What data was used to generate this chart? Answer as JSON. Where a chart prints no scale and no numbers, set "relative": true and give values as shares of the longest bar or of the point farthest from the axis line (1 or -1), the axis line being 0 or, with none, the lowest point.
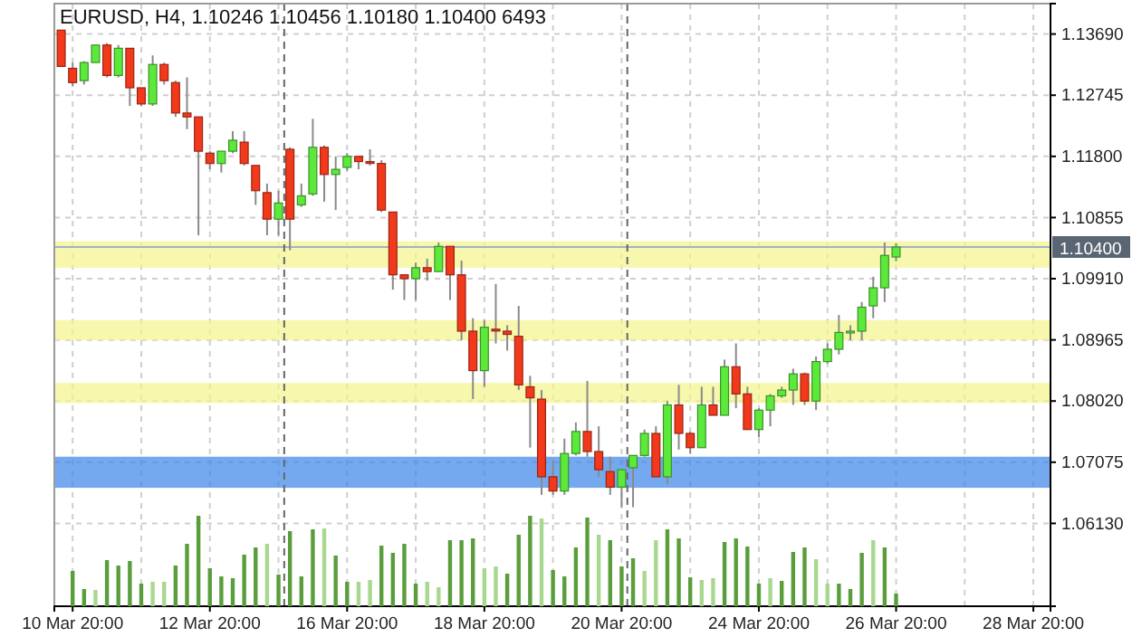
{
  "chart_data": [
    {
      "type": "candlestick",
      "title": "EURUSD, H4, 1.10246 1.10456 1.10180 1.10400 6493",
      "categories": [
        null,
        "10 Mar 20:00",
        null,
        null,
        null,
        null,
        null,
        null,
        null,
        null,
        null,
        null,
        null,
        "12 Mar 20:00",
        null,
        null,
        null,
        null,
        null,
        null,
        null,
        null,
        null,
        null,
        null,
        "16 Mar 20:00",
        null,
        null,
        null,
        null,
        null,
        null,
        null,
        null,
        null,
        null,
        null,
        "18 Mar 20:00",
        null,
        null,
        null,
        null,
        null,
        null,
        null,
        null,
        null,
        null,
        null,
        "20 Mar 20:00",
        null,
        null,
        null,
        null,
        null,
        null,
        null,
        null,
        null,
        null,
        null,
        "24 Mar 20:00",
        null,
        null,
        null,
        null,
        null,
        null,
        null,
        null,
        null,
        null,
        null,
        "26 Mar 20:00",
        null,
        null,
        null,
        null,
        null,
        null,
        null,
        null,
        null,
        null,
        null,
        "28 Mar 20:00"
      ],
      "ohlc": [
        [
          1.1375,
          1.1375,
          1.1319,
          1.1319
        ],
        [
          1.1316,
          1.1325,
          1.1288,
          1.1294
        ],
        [
          1.1297,
          1.1327,
          1.1291,
          1.1325
        ],
        [
          1.1325,
          1.1352,
          1.1325,
          1.1352
        ],
        [
          1.1352,
          1.1355,
          1.1302,
          1.1305
        ],
        [
          1.1305,
          1.1352,
          1.1302,
          1.1347
        ],
        [
          1.1347,
          1.1347,
          1.1258,
          1.1286
        ],
        [
          1.1286,
          1.1286,
          1.1258,
          1.1261
        ],
        [
          1.1261,
          1.1336,
          1.1258,
          1.1322
        ],
        [
          1.1322,
          1.1325,
          1.1291,
          1.1297
        ],
        [
          1.1294,
          1.1297,
          1.1241,
          1.1247
        ],
        [
          1.1247,
          1.1302,
          1.1222,
          1.1241
        ],
        [
          1.1241,
          1.1241,
          1.1058,
          1.1188
        ],
        [
          1.1185,
          1.1188,
          1.116,
          1.1169
        ],
        [
          1.1169,
          1.1188,
          1.1155,
          1.1188
        ],
        [
          1.1188,
          1.1219,
          1.1185,
          1.1205
        ],
        [
          1.1202,
          1.1219,
          1.1166,
          1.1169
        ],
        [
          1.1166,
          1.1166,
          1.1105,
          1.1127
        ],
        [
          1.1124,
          1.1138,
          1.1058,
          1.1083
        ],
        [
          1.1083,
          1.1127,
          1.1058,
          1.1108
        ],
        [
          1.1191,
          1.1194,
          1.1035,
          1.1083
        ],
        [
          1.1105,
          1.1138,
          1.1102,
          1.1119
        ],
        [
          1.1122,
          1.1238,
          1.1119,
          1.1194
        ],
        [
          1.1194,
          1.1197,
          1.111,
          1.1152
        ],
        [
          1.1152,
          1.118,
          1.1097,
          1.116
        ],
        [
          1.1163,
          1.1185,
          1.1158,
          1.118
        ],
        [
          1.118,
          1.118,
          1.116,
          1.1172
        ],
        [
          1.1172,
          1.1191,
          1.1166,
          1.1171
        ],
        [
          1.1169,
          1.1174,
          1.1094,
          1.1097
        ],
        [
          1.1094,
          1.1094,
          1.0974,
          1.0997
        ],
        [
          1.0997,
          1.0997,
          1.0958,
          1.0991
        ],
        [
          1.0991,
          1.1016,
          1.0958,
          1.1008
        ],
        [
          1.1008,
          1.1022,
          1.0988,
          1.1002
        ],
        [
          1.1002,
          1.1047,
          1.1002,
          1.1041
        ],
        [
          1.1041,
          1.1041,
          1.0958,
          1.0997
        ],
        [
          1.0997,
          1.1019,
          1.0896,
          1.091
        ],
        [
          1.091,
          1.093,
          1.0805,
          1.0849
        ],
        [
          1.0849,
          1.0927,
          1.0824,
          1.0916
        ],
        [
          1.0913,
          1.0983,
          1.0891,
          1.0912
        ],
        [
          1.091,
          1.0919,
          1.088,
          1.0905
        ],
        [
          1.0902,
          1.0949,
          1.0819,
          1.0827
        ],
        [
          1.0824,
          1.0841,
          1.073,
          1.0807
        ],
        [
          1.0805,
          1.0819,
          1.0657,
          1.0685
        ],
        [
          1.0685,
          1.071,
          1.0657,
          1.0663
        ],
        [
          1.0663,
          1.0744,
          1.0657,
          1.0721
        ],
        [
          1.0721,
          1.0769,
          1.0718,
          1.0755
        ],
        [
          1.0755,
          1.0833,
          1.0716,
          1.0724
        ],
        [
          1.0724,
          1.0763,
          1.0685,
          1.0696
        ],
        [
          1.0693,
          1.0716,
          1.0657,
          1.0669
        ],
        [
          1.0669,
          1.0696,
          1.0638,
          1.0696
        ],
        [
          1.0699,
          1.0718,
          1.0638,
          1.0718
        ],
        [
          1.0718,
          1.0758,
          1.0716,
          1.0752
        ],
        [
          1.0752,
          1.0763,
          1.0685,
          1.0685
        ],
        [
          1.0685,
          1.0802,
          1.0674,
          1.0796
        ],
        [
          1.0796,
          1.0827,
          1.0727,
          1.0752
        ],
        [
          1.0752,
          1.0755,
          1.0721,
          1.073
        ],
        [
          1.073,
          1.0824,
          1.073,
          1.0796
        ],
        [
          1.0796,
          1.0824,
          1.078,
          1.078
        ],
        [
          1.078,
          1.0866,
          1.078,
          1.0855
        ],
        [
          1.0855,
          1.0891,
          1.0791,
          1.0813
        ],
        [
          1.0813,
          1.0824,
          1.0758,
          1.0758
        ],
        [
          1.0758,
          1.0791,
          1.0746,
          1.0788
        ],
        [
          1.0788,
          1.0813,
          1.0763,
          1.081
        ],
        [
          1.081,
          1.0824,
          1.0807,
          1.0819
        ],
        [
          1.0819,
          1.0852,
          1.0796,
          1.0844
        ],
        [
          1.0844,
          1.0846,
          1.0796,
          1.0802
        ],
        [
          1.0802,
          1.0871,
          1.0788,
          1.0863
        ],
        [
          1.0863,
          1.0891,
          1.086,
          1.0882
        ],
        [
          1.0882,
          1.0935,
          1.0874,
          1.0908
        ],
        [
          1.0909,
          1.0919,
          1.0896,
          1.091
        ],
        [
          1.091,
          1.0955,
          1.0896,
          1.0947
        ],
        [
          1.0949,
          1.0994,
          1.093,
          1.0977
        ],
        [
          1.0977,
          1.1047,
          1.0955,
          1.1027
        ],
        [
          1.10246,
          1.10456,
          1.1018,
          1.104
        ],
        null,
        null,
        null,
        null,
        null,
        null,
        null,
        null,
        null,
        null,
        null,
        null
      ],
      "colors": [
        "#f2391c",
        "#f2391c",
        "#5ce93c",
        "#5ce93c",
        "#f2391c",
        "#5ce93c",
        "#f2391c",
        "#f2391c",
        "#5ce93c",
        "#f2391c",
        "#f2391c",
        "#f2391c",
        "#f2391c",
        "#f2391c",
        "#5ce93c",
        "#5ce93c",
        "#f2391c",
        "#f2391c",
        "#f2391c",
        "#5ce93c",
        "#f2391c",
        "#5ce93c",
        "#5ce93c",
        "#f2391c",
        "#5ce93c",
        "#5ce93c",
        "#f2391c",
        "#f2391c",
        "#f2391c",
        "#f2391c",
        "#f2391c",
        "#5ce93c",
        "#f2391c",
        "#5ce93c",
        "#f2391c",
        "#f2391c",
        "#f2391c",
        "#5ce93c",
        "#f2391c",
        "#f2391c",
        "#f2391c",
        "#f2391c",
        "#f2391c",
        "#f2391c",
        "#5ce93c",
        "#5ce93c",
        "#f2391c",
        "#f2391c",
        "#f2391c",
        "#5ce93c",
        "#5ce93c",
        "#5ce93c",
        "#f2391c",
        "#5ce93c",
        "#f2391c",
        "#f2391c",
        "#5ce93c",
        "#f2391c",
        "#5ce93c",
        "#f2391c",
        "#f2391c",
        "#5ce93c",
        "#5ce93c",
        "#5ce93c",
        "#5ce93c",
        "#f2391c",
        "#5ce93c",
        "#5ce93c",
        "#5ce93c",
        "#5ce93c",
        "#5ce93c",
        "#5ce93c",
        "#5ce93c",
        "#5ce93c",
        null,
        null,
        null,
        null,
        null,
        null,
        null,
        null,
        null,
        null,
        null,
        null
      ],
      "ylim": [
        1.0485,
        1.1416
      ],
      "yticks": [
        {
          "value": 1.0613,
          "label": "1.06130"
        },
        {
          "value": 1.07075,
          "label": "1.07075"
        },
        {
          "value": 1.0802,
          "label": "1.08020"
        },
        {
          "value": 1.08965,
          "label": "1.08965"
        },
        {
          "value": 1.0991,
          "label": "1.09910"
        },
        {
          "value": 1.10855,
          "label": "1.10855"
        },
        {
          "value": 1.118,
          "label": "1.11800"
        },
        {
          "value": 1.12745,
          "label": "1.12745"
        },
        {
          "value": 1.1369,
          "label": "1.13690"
        }
      ],
      "grid": true,
      "bands": [
        {
          "axis": "y",
          "from": 1.1008,
          "to": 1.1049,
          "color": "#f4f48a"
        },
        {
          "axis": "y",
          "from": 1.0896,
          "to": 1.0927,
          "color": "#f4f48a"
        },
        {
          "axis": "y",
          "from": 1.0799,
          "to": 1.083,
          "color": "#f4f48a"
        },
        {
          "axis": "y",
          "from": 1.0668,
          "to": 1.0716,
          "color": "#3a84e8"
        }
      ],
      "ref_lines": [
        {
          "axis": "y",
          "value": 1.104,
          "label": "1.10400",
          "color": "#9fb3cc"
        }
      ]
    },
    {
      "type": "bar",
      "relative": true,
      "categories": [
        null,
        null,
        null,
        null,
        null,
        null,
        null,
        null,
        null,
        null,
        null,
        null,
        null,
        null,
        null,
        null,
        null,
        null,
        null,
        null,
        null,
        null,
        null,
        null,
        null,
        null,
        null,
        null,
        null,
        null,
        null,
        null,
        null,
        null,
        null,
        null,
        null,
        null,
        null,
        null,
        null,
        null,
        null,
        null,
        null,
        null,
        null,
        null,
        null,
        null,
        null,
        null,
        null,
        null,
        null,
        null,
        null,
        null,
        null,
        null,
        null,
        null,
        null,
        null,
        null,
        null,
        null,
        null,
        null,
        null,
        null,
        null,
        null
      ],
      "values": [
        0.39,
        0.19,
        0.18,
        0.51,
        0.45,
        0.5,
        0.25,
        0.27,
        0.27,
        0.45,
        0.69,
        1,
        0.42,
        0.33,
        0.31,
        0.57,
        0.65,
        0.69,
        0.35,
        0.83,
        0.33,
        0.85,
        0.86,
        0.56,
        0.27,
        0.27,
        0.29,
        0.67,
        0.59,
        0.69,
        0.25,
        0.27,
        0.21,
        0.73,
        0.73,
        0.75,
        0.42,
        0.44,
        0.36,
        0.79,
        1,
        0.97,
        0.4,
        0.33,
        0.65,
        0.98,
        0.79,
        0.73,
        0.44,
        0.53,
        0.39,
        0.73,
        0.85,
        0.75,
        0.32,
        0.29,
        0.31,
        0.71,
        0.75,
        0.66,
        0.25,
        0.31,
        0.28,
        0.6,
        0.65,
        0.52,
        0.25,
        0.25,
        0.19,
        0.59,
        0.73,
        0.65,
        0.14
      ],
      "colors": [
        "#5a9e3c",
        "#5a9e3c",
        "#a8d890",
        "#5a9e3c",
        "#5a9e3c",
        "#5a9e3c",
        "#5a9e3c",
        "#a8d890",
        "#a8d890",
        "#5a9e3c",
        "#5a9e3c",
        "#5a9e3c",
        "#5a9e3c",
        "#5a9e3c",
        "#5a9e3c",
        "#5a9e3c",
        "#5a9e3c",
        "#a8d890",
        "#5a9e3c",
        "#5a9e3c",
        "#5a9e3c",
        "#5a9e3c",
        "#a8d890",
        "#5a9e3c",
        "#5a9e3c",
        "#a8d890",
        "#a8d890",
        "#5a9e3c",
        "#5a9e3c",
        "#5a9e3c",
        "#5a9e3c",
        "#a8d890",
        "#a8d890",
        "#5a9e3c",
        "#5a9e3c",
        "#5a9e3c",
        "#a8d890",
        "#a8d890",
        "#5a9e3c",
        "#5a9e3c",
        "#5a9e3c",
        "#a8d890",
        "#5a9e3c",
        "#5a9e3c",
        "#5a9e3c",
        "#5a9e3c",
        "#a8d890",
        "#5a9e3c",
        "#5a9e3c",
        "#5a9e3c",
        "#a8d890",
        "#a8d890",
        "#5a9e3c",
        "#5a9e3c",
        "#5a9e3c",
        "#a8d890",
        "#a8d890",
        "#5a9e3c",
        "#5a9e3c",
        "#5a9e3c",
        "#5a9e3c",
        "#a8d890",
        "#5a9e3c",
        "#5a9e3c",
        "#5a9e3c",
        "#a8d890",
        "#a8d890",
        "#5a9e3c",
        "#5a9e3c",
        "#5a9e3c",
        "#a8d890",
        "#5a9e3c",
        "#5a9e3c"
      ]
    }
  ]
}
